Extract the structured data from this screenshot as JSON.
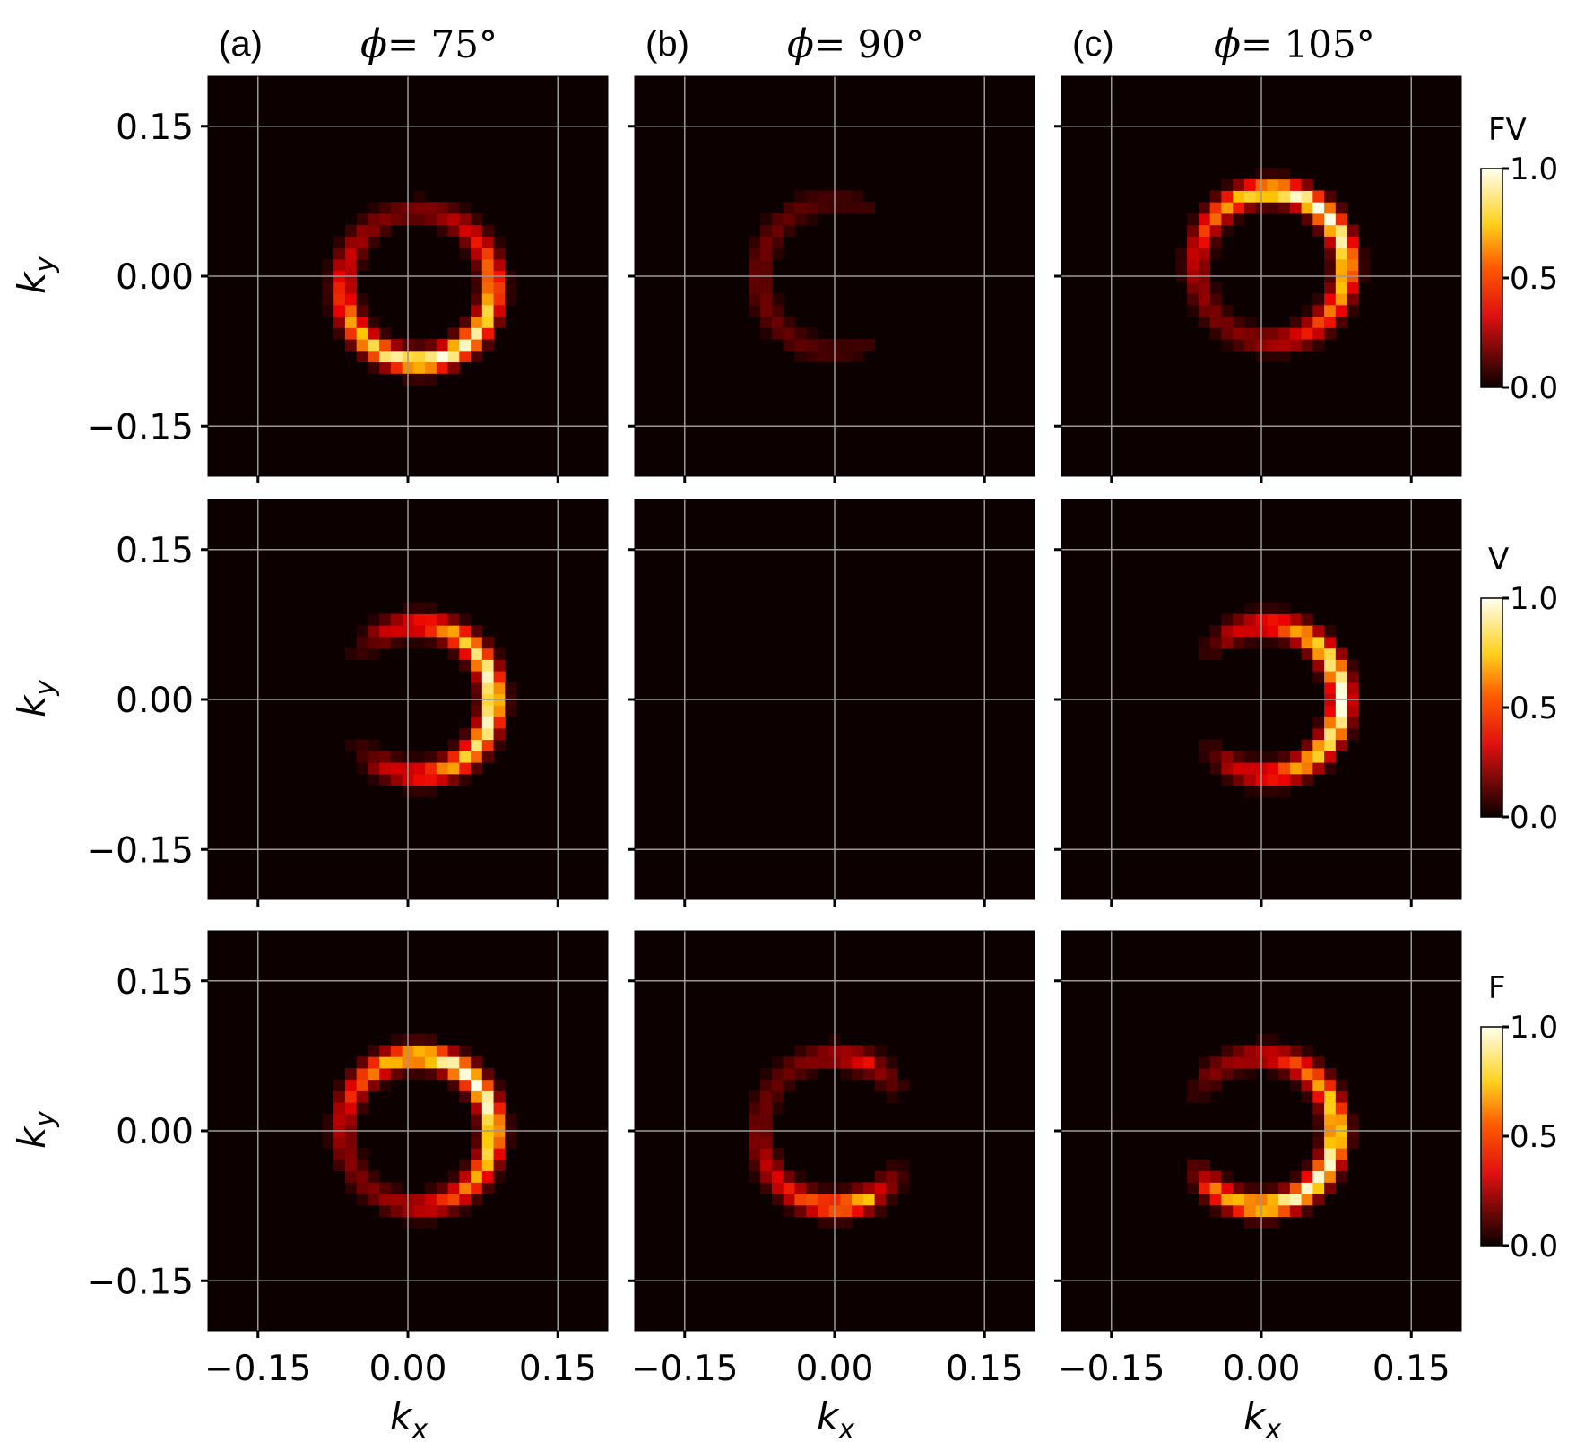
{
  "columns": [
    {
      "letter": "(a)",
      "phi_symbol": "ϕ",
      "title": " = 75°"
    },
    {
      "letter": "(b)",
      "phi_symbol": "ϕ",
      "title": " = 90°"
    },
    {
      "letter": "(c)",
      "phi_symbol": "ϕ",
      "title": " = 105°"
    }
  ],
  "rows": [
    {
      "colorbar_label": "FV",
      "colorbar_ticks": [
        "0.0",
        "0.5",
        "1.0"
      ]
    },
    {
      "colorbar_label": "V",
      "colorbar_ticks": [
        "0.0",
        "0.5",
        "1.0"
      ]
    },
    {
      "colorbar_label": "F",
      "colorbar_ticks": [
        "0.0",
        "0.5",
        "1.0"
      ]
    }
  ],
  "axes": {
    "xlabel": "k",
    "xlabel_sub": "x",
    "ylabel": "k",
    "ylabel_sub": "y",
    "tick_values": [
      -0.15,
      0.0,
      0.15
    ],
    "tick_labels": [
      "−0.15",
      "0.00",
      "0.15"
    ],
    "xlim": [
      -0.2,
      0.2
    ],
    "ylim": [
      -0.2,
      0.2
    ],
    "grid": true
  },
  "colors": {
    "background": "#0d0000",
    "grid": "#9a9a9a",
    "colormap": "hot"
  },
  "chart_data": [
    {
      "type": "heatmap",
      "row": 0,
      "col": 0,
      "ring_center": [
        0.01,
        -0.01
      ],
      "ring_radius": 0.075,
      "peak_angle_deg": -75,
      "spread": 1.0,
      "gap_deg": 0,
      "max": 1.0
    },
    {
      "type": "heatmap",
      "row": 0,
      "col": 1,
      "ring_center": [
        0.0,
        0.0
      ],
      "ring_radius": 0.075,
      "peak_angle_deg": 180,
      "spread": 1.0,
      "gap_deg": 60,
      "max": 0.18
    },
    {
      "type": "heatmap",
      "row": 0,
      "col": 2,
      "ring_center": [
        0.01,
        0.01
      ],
      "ring_radius": 0.075,
      "peak_angle_deg": 50,
      "spread": 1.0,
      "gap_deg": 0,
      "max": 1.0
    },
    {
      "type": "heatmap",
      "row": 1,
      "col": 0,
      "ring_center": [
        0.01,
        0.0
      ],
      "ring_radius": 0.075,
      "peak_angle_deg": 0,
      "spread": 1.4,
      "gap_deg": 55,
      "max": 1.0
    },
    {
      "type": "heatmap",
      "row": 1,
      "col": 1,
      "ring_center": [
        0.0,
        0.0
      ],
      "ring_radius": 0.075,
      "peak_angle_deg": 0,
      "spread": 1.0,
      "gap_deg": 0,
      "max": 0.0
    },
    {
      "type": "heatmap",
      "row": 1,
      "col": 2,
      "ring_center": [
        0.005,
        0.0
      ],
      "ring_radius": 0.075,
      "peak_angle_deg": 0,
      "spread": 1.4,
      "gap_deg": 55,
      "max": 1.0
    },
    {
      "type": "heatmap",
      "row": 2,
      "col": 0,
      "ring_center": [
        0.01,
        0.0
      ],
      "ring_radius": 0.075,
      "peak_angle_deg": 40,
      "spread": 0.9,
      "gap_deg": 0,
      "max": 1.0
    },
    {
      "type": "heatmap",
      "row": 2,
      "col": 1,
      "ring_center": [
        0.0,
        0.0
      ],
      "ring_radius": 0.075,
      "peak_angle_deg": -35,
      "spread": 1.0,
      "gap_deg": 60,
      "max": 0.8
    },
    {
      "type": "heatmap",
      "row": 2,
      "col": 2,
      "ring_center": [
        0.0,
        0.0
      ],
      "ring_radius": 0.075,
      "peak_angle_deg": -40,
      "spread": 0.9,
      "gap_deg": 40,
      "max": 1.0
    }
  ]
}
